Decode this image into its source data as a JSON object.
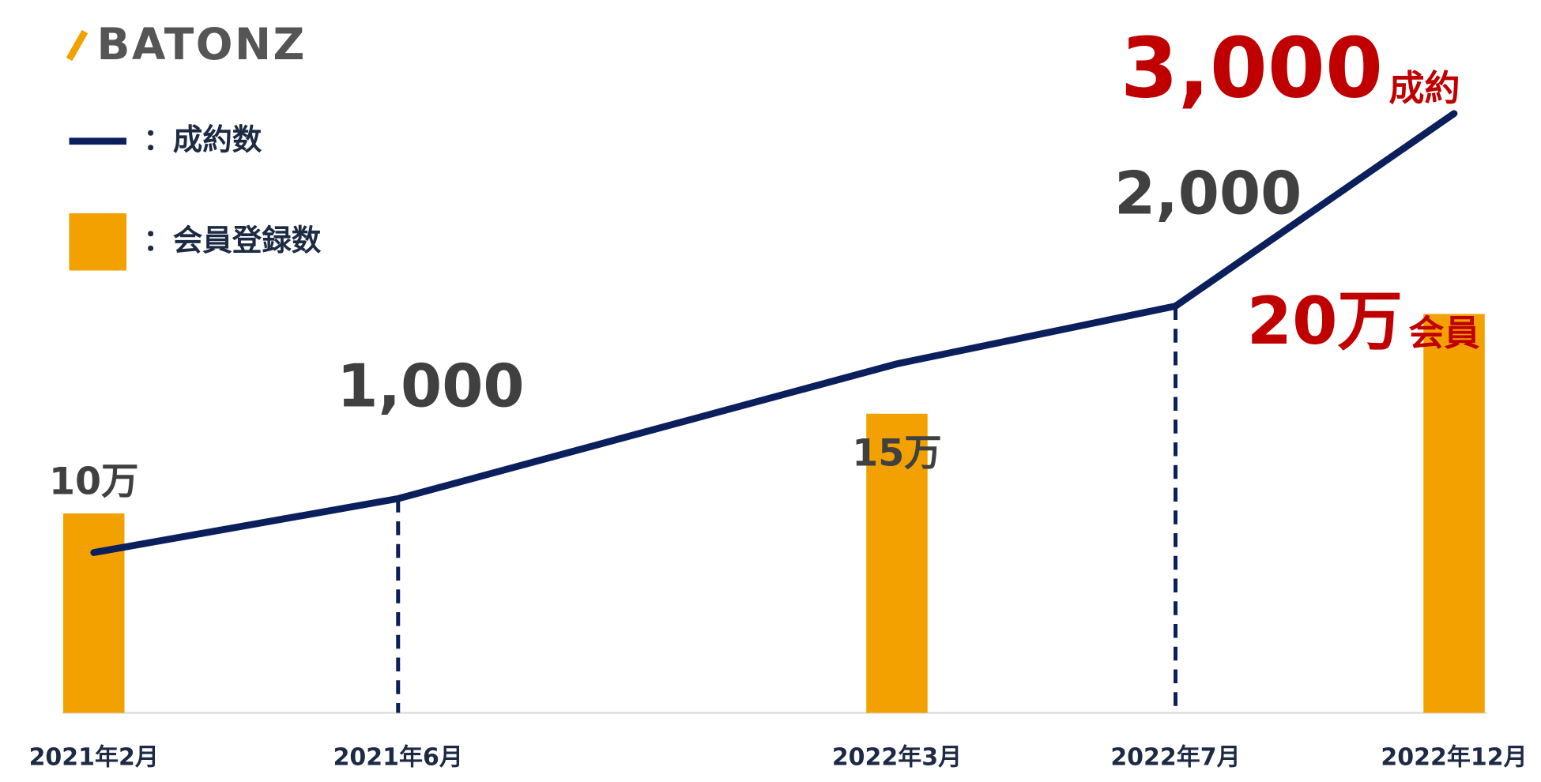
{
  "logo": "BATONZ",
  "chart_data": {
    "type": "bar-line",
    "categories": [
      "2021年2月",
      "2021年6月",
      "2022年3月",
      "2022年7月",
      "2022年12月"
    ],
    "series": [
      {
        "name": "：成約数",
        "type": "line",
        "color": "#0b1f5c",
        "values": [
          720,
          1000,
          1700,
          2000,
          3000
        ],
        "value_labels": [
          null,
          "1,000",
          null,
          "2,000",
          "3,000"
        ],
        "highlight_unit": "成約"
      },
      {
        "name": "：会員登録数",
        "type": "bar",
        "color": "#f2a100",
        "values": [
          10,
          null,
          15,
          null,
          20
        ],
        "value_labels": [
          "10万",
          null,
          "15万",
          null,
          "20万"
        ],
        "highlight_unit": "会員"
      }
    ]
  }
}
